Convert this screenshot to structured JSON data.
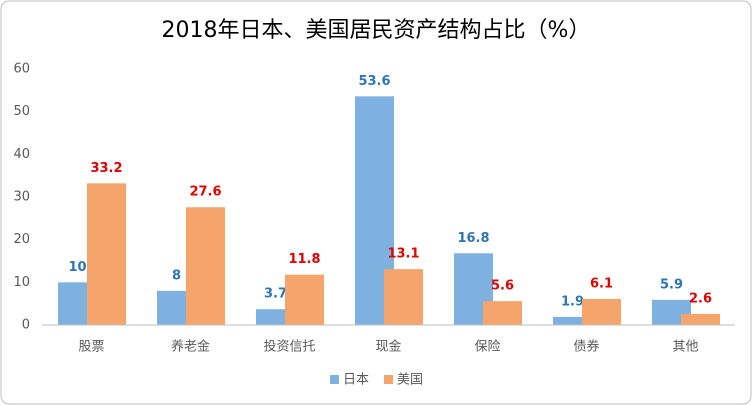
{
  "chart_data": {
    "type": "bar",
    "title": "2018年日本、美国居民资产结构占比（%）",
    "categories": [
      "股票",
      "养老金",
      "投资信托",
      "现金",
      "保险",
      "债券",
      "其他"
    ],
    "series": [
      {
        "name": "日本",
        "color": "#7eb1e0",
        "label_color": "#2e75b6",
        "values": [
          10,
          8,
          3.7,
          53.6,
          16.8,
          1.9,
          5.9
        ]
      },
      {
        "name": "美国",
        "color": "#f5a46c",
        "label_color": "#e00000",
        "values": [
          33.2,
          27.6,
          11.8,
          13.1,
          5.6,
          6.1,
          2.6
        ]
      }
    ],
    "ylim": [
      0,
      60
    ],
    "yticks": [
      0,
      10,
      20,
      30,
      40,
      50,
      60
    ],
    "grid": false,
    "legend": "bottom"
  }
}
